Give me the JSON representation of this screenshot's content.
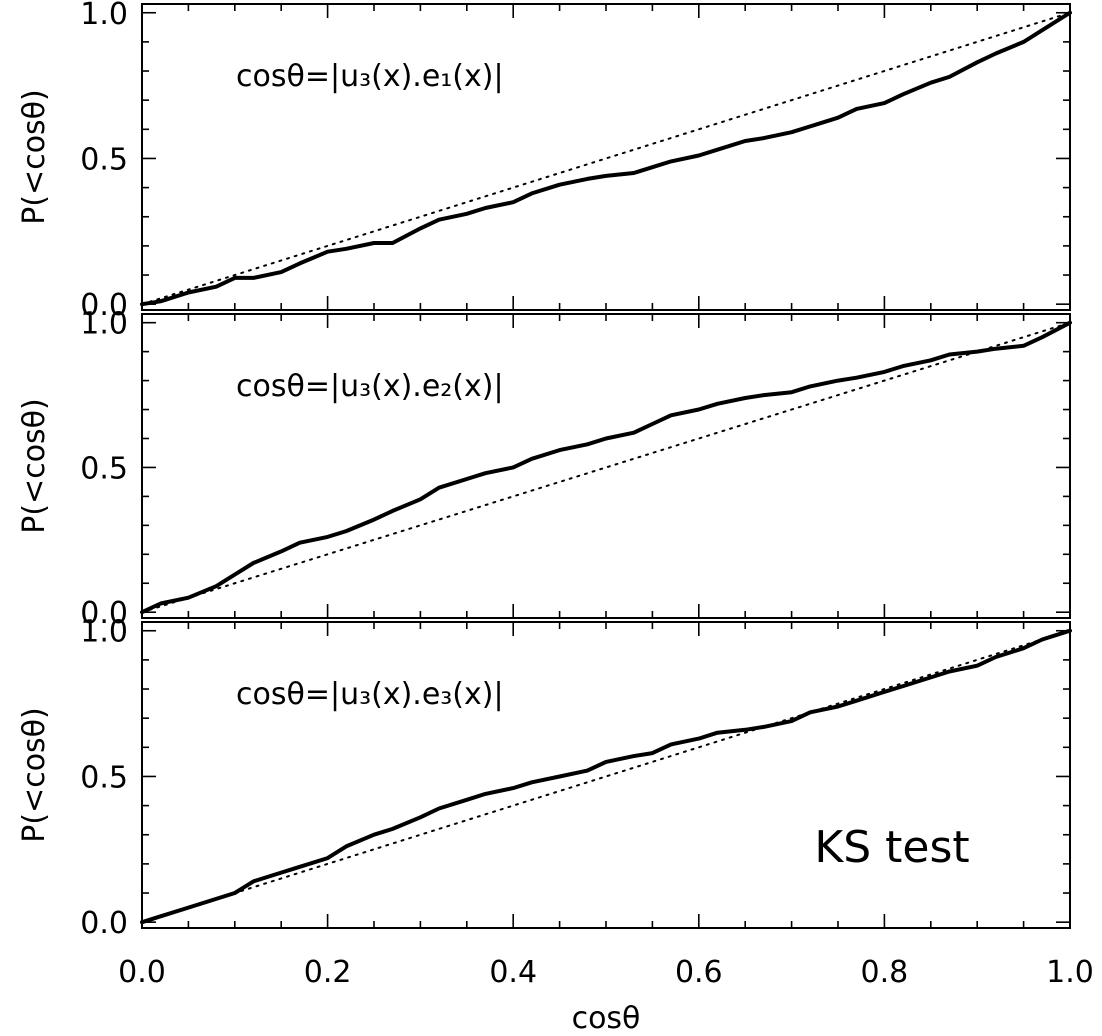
{
  "figure": {
    "xlabel": "cosθ",
    "annotation": "KS test"
  },
  "chart_data": [
    {
      "type": "line",
      "panel": "top",
      "annotation": "cosθ=|u₃(x).e₁(x)|",
      "ylabel": "P(<cosθ)",
      "xlim": [
        0.0,
        1.0
      ],
      "ylim": [
        -0.02,
        1.03
      ],
      "yticks": [
        "0.0",
        "0.5",
        "1.0"
      ],
      "xticks": [
        "0.0",
        "0.2",
        "0.4",
        "0.6",
        "0.8",
        "1.0"
      ],
      "grid": false,
      "series": [
        {
          "style": "solid",
          "x": [
            0.0,
            0.02,
            0.05,
            0.08,
            0.1,
            0.12,
            0.15,
            0.17,
            0.2,
            0.22,
            0.25,
            0.27,
            0.3,
            0.32,
            0.35,
            0.37,
            0.4,
            0.42,
            0.45,
            0.48,
            0.5,
            0.53,
            0.55,
            0.57,
            0.6,
            0.62,
            0.65,
            0.67,
            0.7,
            0.72,
            0.75,
            0.77,
            0.8,
            0.82,
            0.85,
            0.87,
            0.9,
            0.92,
            0.95,
            0.97,
            1.0
          ],
          "y": [
            0.0,
            0.01,
            0.04,
            0.06,
            0.09,
            0.09,
            0.11,
            0.14,
            0.18,
            0.19,
            0.21,
            0.21,
            0.26,
            0.29,
            0.31,
            0.33,
            0.35,
            0.38,
            0.41,
            0.43,
            0.44,
            0.45,
            0.47,
            0.49,
            0.51,
            0.53,
            0.56,
            0.57,
            0.59,
            0.61,
            0.64,
            0.67,
            0.69,
            0.72,
            0.76,
            0.78,
            0.83,
            0.86,
            0.9,
            0.94,
            1.0
          ]
        },
        {
          "style": "dotted",
          "x": [
            0.0,
            1.0
          ],
          "y": [
            0.0,
            1.0
          ]
        }
      ]
    },
    {
      "type": "line",
      "panel": "middle",
      "annotation": "cosθ=|u₃(x).e₂(x)|",
      "ylabel": "P(<cosθ)",
      "xlim": [
        0.0,
        1.0
      ],
      "ylim": [
        -0.02,
        1.03
      ],
      "yticks": [
        "0.0",
        "0.5",
        "1.0"
      ],
      "xticks": [
        "0.0",
        "0.2",
        "0.4",
        "0.6",
        "0.8",
        "1.0"
      ],
      "grid": false,
      "series": [
        {
          "style": "solid",
          "x": [
            0.0,
            0.02,
            0.05,
            0.08,
            0.1,
            0.12,
            0.15,
            0.17,
            0.2,
            0.22,
            0.25,
            0.27,
            0.3,
            0.32,
            0.35,
            0.37,
            0.4,
            0.42,
            0.45,
            0.48,
            0.5,
            0.53,
            0.55,
            0.57,
            0.6,
            0.62,
            0.65,
            0.67,
            0.7,
            0.72,
            0.75,
            0.77,
            0.8,
            0.82,
            0.85,
            0.87,
            0.9,
            0.92,
            0.95,
            0.97,
            1.0
          ],
          "y": [
            0.0,
            0.03,
            0.05,
            0.09,
            0.13,
            0.17,
            0.21,
            0.24,
            0.26,
            0.28,
            0.32,
            0.35,
            0.39,
            0.43,
            0.46,
            0.48,
            0.5,
            0.53,
            0.56,
            0.58,
            0.6,
            0.62,
            0.65,
            0.68,
            0.7,
            0.72,
            0.74,
            0.75,
            0.76,
            0.78,
            0.8,
            0.81,
            0.83,
            0.85,
            0.87,
            0.89,
            0.9,
            0.91,
            0.92,
            0.95,
            1.0
          ]
        },
        {
          "style": "dotted",
          "x": [
            0.0,
            1.0
          ],
          "y": [
            0.0,
            1.0
          ]
        }
      ]
    },
    {
      "type": "line",
      "panel": "bottom",
      "annotation": "cosθ=|u₃(x).e₃(x)|",
      "ylabel": "P(<cosθ)",
      "xlim": [
        0.0,
        1.0
      ],
      "ylim": [
        -0.02,
        1.03
      ],
      "yticks": [
        "0.0",
        "0.5",
        "1.0"
      ],
      "xticks": [
        "0.0",
        "0.2",
        "0.4",
        "0.6",
        "0.8",
        "1.0"
      ],
      "grid": false,
      "series": [
        {
          "style": "solid",
          "x": [
            0.0,
            0.02,
            0.05,
            0.08,
            0.1,
            0.12,
            0.15,
            0.17,
            0.2,
            0.22,
            0.25,
            0.27,
            0.3,
            0.32,
            0.35,
            0.37,
            0.4,
            0.42,
            0.45,
            0.48,
            0.5,
            0.53,
            0.55,
            0.57,
            0.6,
            0.62,
            0.65,
            0.67,
            0.7,
            0.72,
            0.75,
            0.77,
            0.8,
            0.82,
            0.85,
            0.87,
            0.9,
            0.92,
            0.95,
            0.97,
            1.0
          ],
          "y": [
            0.0,
            0.02,
            0.05,
            0.08,
            0.1,
            0.14,
            0.17,
            0.19,
            0.22,
            0.26,
            0.3,
            0.32,
            0.36,
            0.39,
            0.42,
            0.44,
            0.46,
            0.48,
            0.5,
            0.52,
            0.55,
            0.57,
            0.58,
            0.61,
            0.63,
            0.65,
            0.66,
            0.67,
            0.69,
            0.72,
            0.74,
            0.76,
            0.79,
            0.81,
            0.84,
            0.86,
            0.88,
            0.91,
            0.94,
            0.97,
            1.0
          ]
        },
        {
          "style": "dotted",
          "x": [
            0.0,
            1.0
          ],
          "y": [
            0.0,
            1.0
          ]
        }
      ]
    }
  ]
}
